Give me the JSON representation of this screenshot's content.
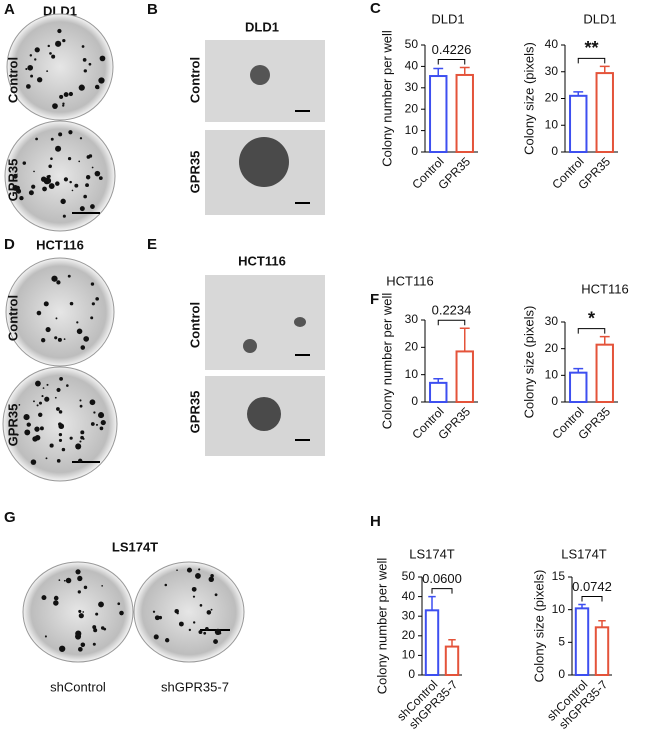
{
  "panels": {
    "letters": [
      "A",
      "B",
      "C",
      "D",
      "E",
      "F",
      "G",
      "H"
    ],
    "A": {
      "title": "DLD1",
      "rows": [
        "Control",
        "GPR35"
      ]
    },
    "B": {
      "title": "DLD1",
      "rows": [
        "Control",
        "GPR35"
      ]
    },
    "D": {
      "title": "HCT116",
      "rows": [
        "Control",
        "GPR35"
      ]
    },
    "E": {
      "title": "HCT116",
      "rows": [
        "Control",
        "GPR35"
      ]
    },
    "G": {
      "title": "LS174T",
      "columns": [
        "shControl",
        "shGPR35-7"
      ]
    }
  },
  "chart_data": [
    {
      "type": "bar",
      "title": "DLD1",
      "y_label": "Colony number per well",
      "categories": [
        "Control",
        "GPR35"
      ],
      "values": [
        35.5,
        36
      ],
      "errors": [
        3.5,
        3.5
      ],
      "colors": [
        "#3d4ff0",
        "#e4533a"
      ],
      "ylim": [
        0,
        50
      ],
      "yticks": [
        0,
        10,
        20,
        30,
        40,
        50
      ],
      "annotation": "0.4226"
    },
    {
      "type": "bar",
      "title": "DLD1",
      "y_label": "Colony size (pixels)",
      "categories": [
        "Control",
        "GPR35"
      ],
      "values": [
        21,
        29.5
      ],
      "errors": [
        1.5,
        2.5
      ],
      "colors": [
        "#3d4ff0",
        "#e4533a"
      ],
      "ylim": [
        0,
        40
      ],
      "yticks": [
        0,
        10,
        20,
        30,
        40
      ],
      "annotation": "**"
    },
    {
      "type": "bar",
      "title": "HCT116",
      "y_label": "Colony number per well",
      "categories": [
        "Control",
        "GPR35"
      ],
      "values": [
        7,
        18.5
      ],
      "errors": [
        1.5,
        8.5
      ],
      "colors": [
        "#3d4ff0",
        "#e4533a"
      ],
      "ylim": [
        0,
        30
      ],
      "yticks": [
        0,
        10,
        20,
        30
      ],
      "annotation": "0.2234"
    },
    {
      "type": "bar",
      "title": "HCT116",
      "y_label": "Colony size (pixels)",
      "categories": [
        "Control",
        "GPR35"
      ],
      "values": [
        11,
        21.5
      ],
      "errors": [
        1.5,
        3
      ],
      "colors": [
        "#3d4ff0",
        "#e4533a"
      ],
      "ylim": [
        0,
        30
      ],
      "yticks": [
        0,
        10,
        20,
        30
      ],
      "annotation": "*"
    },
    {
      "type": "bar",
      "title": "LS174T",
      "y_label": "Colony number per well",
      "categories": [
        "shControl",
        "shGPR35-7"
      ],
      "values": [
        33,
        14.5
      ],
      "errors": [
        7,
        3.5
      ],
      "colors": [
        "#3d4ff0",
        "#e4533a"
      ],
      "ylim": [
        0,
        50
      ],
      "yticks": [
        0,
        10,
        20,
        30,
        40,
        50
      ],
      "annotation": "0.0600"
    },
    {
      "type": "bar",
      "title": "LS174T",
      "y_label": "Colony size (pixels)",
      "categories": [
        "shControl",
        "shGPR35-7"
      ],
      "values": [
        10.2,
        7.3
      ],
      "errors": [
        0.6,
        1
      ],
      "colors": [
        "#3d4ff0",
        "#e4533a"
      ],
      "ylim": [
        0,
        15
      ],
      "yticks": [
        0,
        5,
        10,
        15
      ],
      "annotation": "0.0742"
    }
  ]
}
